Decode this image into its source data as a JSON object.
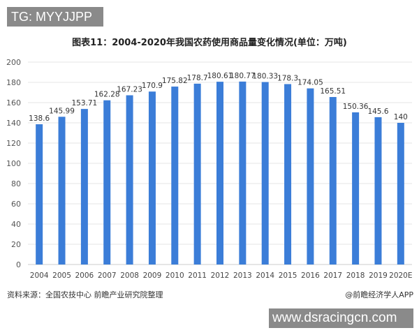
{
  "watermark_top": "TG: MYYJJPP",
  "watermark_bottom": "www.dsracingcn.com",
  "source": "资料来源：全国农技中心 前瞻产业研究院整理",
  "brand": "@前瞻经济学人APP",
  "chart_data": {
    "type": "bar",
    "title": "图表11：2004-2020年我国农药使用商品量变化情况(单位：万吨)",
    "categories": [
      "2004",
      "2005",
      "2006",
      "2007",
      "2008",
      "2009",
      "2010",
      "2011",
      "2012",
      "2013",
      "2014",
      "2015",
      "2016",
      "2017",
      "2018",
      "2019",
      "2020E"
    ],
    "values": [
      138.6,
      145.99,
      153.71,
      162.28,
      167.23,
      170.9,
      175.82,
      178.7,
      180.61,
      180.77,
      180.33,
      178.3,
      174.05,
      165.51,
      150.36,
      145.6,
      140
    ],
    "ylim": [
      0,
      200
    ],
    "yticks": [
      0,
      20,
      40,
      60,
      80,
      100,
      120,
      140,
      160,
      180,
      200
    ],
    "grid": true,
    "bar_color": "#3b7dd8",
    "xlabel": "",
    "ylabel": ""
  }
}
